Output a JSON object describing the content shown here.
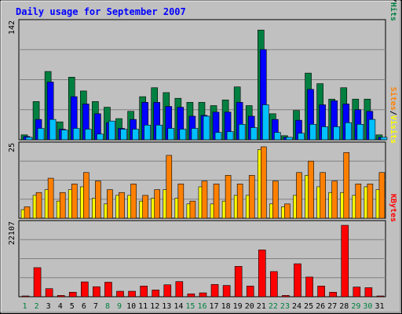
{
  "chart_data": {
    "type": "bar",
    "title": "Daily usage for September 2007",
    "categories": [
      "1",
      "2",
      "3",
      "4",
      "5",
      "6",
      "7",
      "8",
      "9",
      "10",
      "11",
      "12",
      "13",
      "14",
      "15",
      "16",
      "17",
      "18",
      "19",
      "20",
      "21",
      "22",
      "23",
      "24",
      "25",
      "26",
      "27",
      "28",
      "29",
      "30",
      "31"
    ],
    "weekend_days": [
      "1",
      "2",
      "8",
      "9",
      "15",
      "16",
      "22",
      "23",
      "29",
      "30"
    ],
    "panels": [
      {
        "id": "hits",
        "max_label": "142",
        "ylim": [
          0,
          142
        ],
        "series": [
          {
            "name": "Hits",
            "color": "#008040",
            "values": [
              6,
              47,
              84,
              22,
              77,
              60,
              47,
              40,
              26,
              35,
              53,
              64,
              58,
              51,
              46,
              46,
              42,
              49,
              65,
              42,
              135,
              32,
              5,
              36,
              82,
              69,
              50,
              64,
              50,
              50,
              6
            ]
          },
          {
            "name": "Files",
            "color": "#0000ff",
            "values": [
              4,
              25,
              71,
              13,
              53,
              44,
              32,
              21,
              14,
              25,
              46,
              46,
              41,
              40,
              29,
              30,
              34,
              34,
              46,
              29,
              111,
              25,
              3,
              24,
              62,
              43,
              48,
              44,
              37,
              35,
              3
            ]
          },
          {
            "name": "Pages",
            "color": "#00c0ff",
            "values": [
              3,
              14,
              25,
              12,
              14,
              13,
              7,
              23,
              13,
              13,
              18,
              18,
              14,
              13,
              14,
              29,
              9,
              10,
              19,
              15,
              43,
              9,
              3,
              8,
              19,
              16,
              16,
              21,
              19,
              25,
              3
            ]
          }
        ],
        "legend": [
          "Pages",
          "Files",
          "Hits"
        ],
        "legend_separator": "/"
      },
      {
        "id": "visits",
        "max_label": "25",
        "ylim": [
          0,
          25
        ],
        "series": [
          {
            "name": "Visits",
            "color": "#ffff00",
            "values": [
              3,
              8,
              10,
              6,
              10,
              11,
              7,
              5,
              8,
              8,
              6,
              7,
              10,
              7,
              5,
              11,
              5,
              6,
              8,
              8,
              24,
              5,
              4,
              8,
              15,
              11,
              9,
              9,
              8,
              11,
              10
            ]
          },
          {
            "name": "Sites",
            "color": "#ff8000",
            "values": [
              4,
              9,
              14,
              9,
              12,
              16,
              13,
              10,
              9,
              12,
              8,
              10,
              22,
              12,
              6,
              13,
              12,
              15,
              12,
              15,
              25,
              13,
              5,
              16,
              20,
              16,
              13,
              23,
              12,
              12,
              16
            ]
          }
        ],
        "legend": [
          "Sites",
          "Visits"
        ],
        "legend_separator": "/"
      },
      {
        "id": "kbytes",
        "max_label": "22107",
        "ylim": [
          0,
          22107
        ],
        "series": [
          {
            "name": "KBytes",
            "color": "#ff0000",
            "values": [
              200,
              9000,
              2500,
              400,
              1400,
              4600,
              3100,
              4500,
              1700,
              1700,
              3300,
              2100,
              3700,
              4700,
              900,
              1200,
              3800,
              3500,
              9400,
              3300,
              14500,
              7800,
              400,
              10200,
              6100,
              3300,
              1400,
              22107,
              3000,
              2800,
              200
            ]
          }
        ],
        "legend": [
          "KBytes"
        ],
        "legend_separator": ""
      }
    ]
  }
}
